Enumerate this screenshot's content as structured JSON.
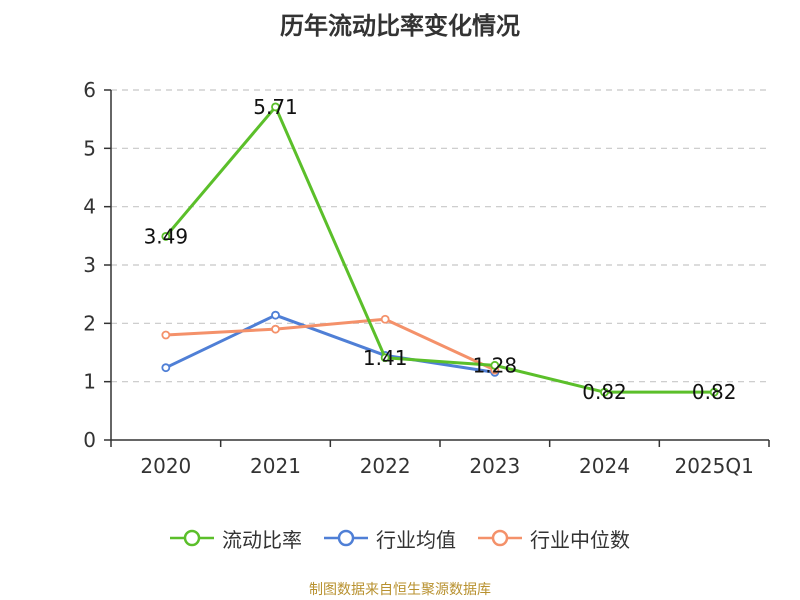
{
  "title": "历年流动比率变化情况",
  "source_note": "制图数据来自恒生聚源数据库",
  "colors": {
    "grid": "#c8c8c8",
    "axis": "#333333"
  },
  "chart_data": {
    "type": "line",
    "title": "历年流动比率变化情况",
    "xlabel": "",
    "ylabel": "",
    "categories": [
      "2020",
      "2021",
      "2022",
      "2023",
      "2024",
      "2025Q1"
    ],
    "ylim": [
      0,
      6
    ],
    "yticks": [
      0,
      1,
      2,
      3,
      4,
      5,
      6
    ],
    "grid": true,
    "legend_position": "bottom",
    "series": [
      {
        "name": "流动比率",
        "color": "#5bbf2a",
        "values": [
          3.49,
          5.71,
          1.41,
          1.28,
          0.82,
          0.82
        ],
        "show_labels": true
      },
      {
        "name": "行业均值",
        "color": "#4f7fd6",
        "values": [
          1.24,
          2.14,
          1.45,
          1.16,
          null,
          null
        ],
        "show_labels": false
      },
      {
        "name": "行业中位数",
        "color": "#f4916a",
        "values": [
          1.8,
          1.9,
          2.07,
          1.2,
          null,
          null
        ],
        "show_labels": false
      }
    ]
  }
}
